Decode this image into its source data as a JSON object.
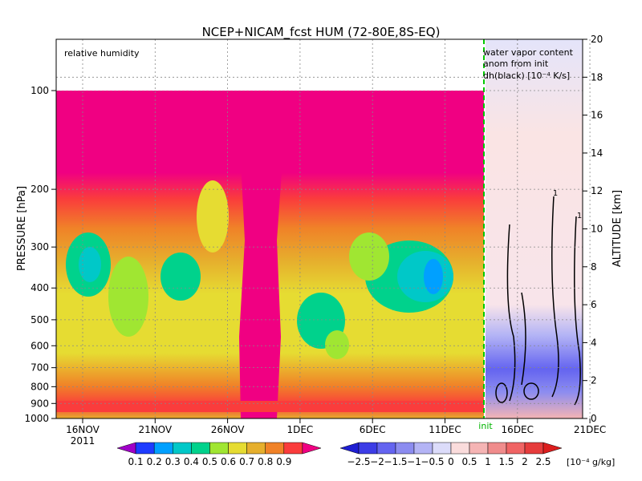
{
  "chart_data": {
    "type": "heatmap",
    "title": "NCEP+NICAM_fcst HUM (72-80E,8S-EQ)",
    "left_panel_label": "relative humidity",
    "right_panel_label": [
      "water vapor content",
      "anom from init",
      "dh(black) [10⁻⁴ K/s]"
    ],
    "ylabel_left": "PRESSURE [hPa]",
    "ylabel_right": "ALTITUDE [km]",
    "init_label": "init",
    "x_ticks": [
      "16NOV",
      "21NOV",
      "26NOV",
      "1DEC",
      "6DEC",
      "11DEC",
      "16DEC",
      "21DEC"
    ],
    "x_year_label": "2011",
    "pressure_ticks": [
      100,
      200,
      300,
      400,
      500,
      600,
      700,
      800,
      900,
      1000
    ],
    "pressure_top": 100,
    "altitude_ticks": [
      0,
      2,
      4,
      6,
      8,
      10,
      12,
      14,
      16,
      18,
      20
    ],
    "altitude_range": [
      0,
      20
    ],
    "grid": true,
    "rh_colorbar": {
      "levels": [
        "0.1",
        "0.2",
        "0.3",
        "0.4",
        "0.5",
        "0.6",
        "0.7",
        "0.8",
        "0.9"
      ],
      "colors": [
        "#a000c8",
        "#1e3cff",
        "#00a0ff",
        "#00c8c8",
        "#00d28c",
        "#a0e632",
        "#e6dc32",
        "#e6af2d",
        "#f08228",
        "#fa3c3c",
        "#f00082"
      ]
    },
    "anom_colorbar": {
      "levels": [
        "−2.5",
        "−2",
        "−1.5",
        "−1",
        "−0.5",
        "0",
        "0.5",
        "1",
        "1.5",
        "2",
        "2.5"
      ],
      "colors": [
        "#1e1ed2",
        "#3c3ce6",
        "#6464f0",
        "#8c8cf0",
        "#b4b4f5",
        "#dcdcfa",
        "#fadcdc",
        "#f5b4b4",
        "#f08c8c",
        "#f06464",
        "#e63c3c",
        "#dc1e1e"
      ],
      "unit": "[10⁻⁴ g/kg]"
    },
    "contour_label": "1"
  }
}
